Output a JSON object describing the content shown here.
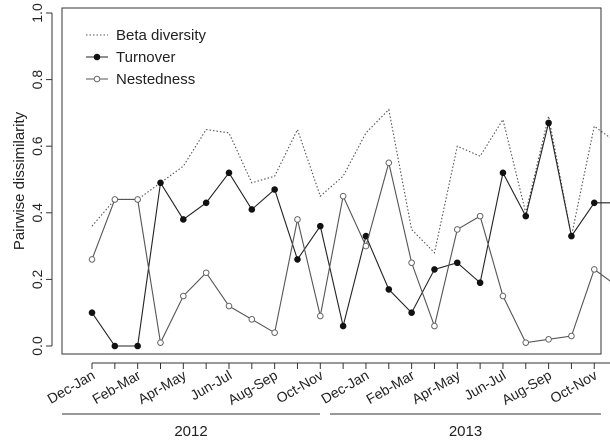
{
  "chart_data": {
    "type": "line",
    "ylabel": "Pairwise dissimilarity",
    "xlabel": "",
    "ylim": [
      0.0,
      1.0
    ],
    "yticks": [
      "0.0",
      "0.2",
      "0.4",
      "0.6",
      "0.8",
      "1.0"
    ],
    "grid": false,
    "legend_position": "top-left",
    "categories": [
      "Dec-Jan",
      "Jan-Feb",
      "Feb-Mar",
      "Mar-Apr",
      "Apr-May",
      "May-Jun",
      "Jun-Jul",
      "Jul-Aug",
      "Aug-Sep",
      "Sep-Oct",
      "Oct-Nov",
      "Nov-Dec",
      "Dec-Jan",
      "Jan-Feb",
      "Feb-Mar",
      "Mar-Apr",
      "Apr-May",
      "May-Jun",
      "Jun-Jul",
      "Jul-Aug",
      "Aug-Sep",
      "Sep-Oct",
      "Oct-Nov",
      "Nov-Dec"
    ],
    "tick_labels": [
      "Dec-Jan",
      "",
      "Feb-Mar",
      "",
      "Apr-May",
      "",
      "Jun-Jul",
      "",
      "Aug-Sep",
      "",
      "Oct-Nov",
      "",
      "Dec-Jan",
      "",
      "Feb-Mar",
      "",
      "Apr-May",
      "",
      "Jun-Jul",
      "",
      "Aug-Sep",
      "",
      "Oct-Nov",
      ""
    ],
    "year_groups": [
      {
        "label": "2012",
        "first": 0,
        "last": 11
      },
      {
        "label": "2013",
        "first": 12,
        "last": 23
      }
    ],
    "series": [
      {
        "name": "Beta diversity",
        "style": "dotted",
        "values": [
          0.36,
          0.44,
          0.44,
          0.49,
          0.54,
          0.65,
          0.64,
          0.49,
          0.51,
          0.65,
          0.45,
          0.51,
          0.64,
          0.71,
          0.35,
          0.28,
          0.6,
          0.57,
          0.68,
          0.4,
          0.69,
          0.33,
          0.66,
          0.61
        ]
      },
      {
        "name": "Turnover",
        "style": "solid-filled",
        "values": [
          0.1,
          0.0,
          0.0,
          0.49,
          0.38,
          0.43,
          0.52,
          0.41,
          0.47,
          0.26,
          0.36,
          0.06,
          0.33,
          0.17,
          0.1,
          0.23,
          0.25,
          0.19,
          0.52,
          0.39,
          0.67,
          0.33,
          0.43,
          0.43
        ]
      },
      {
        "name": "Nestedness",
        "style": "solid-open",
        "values": [
          0.26,
          0.44,
          0.44,
          0.01,
          0.15,
          0.22,
          0.12,
          0.08,
          0.04,
          0.38,
          0.09,
          0.45,
          0.3,
          0.55,
          0.25,
          0.06,
          0.35,
          0.39,
          0.15,
          0.01,
          0.02,
          0.03,
          0.23,
          0.18
        ]
      }
    ]
  }
}
